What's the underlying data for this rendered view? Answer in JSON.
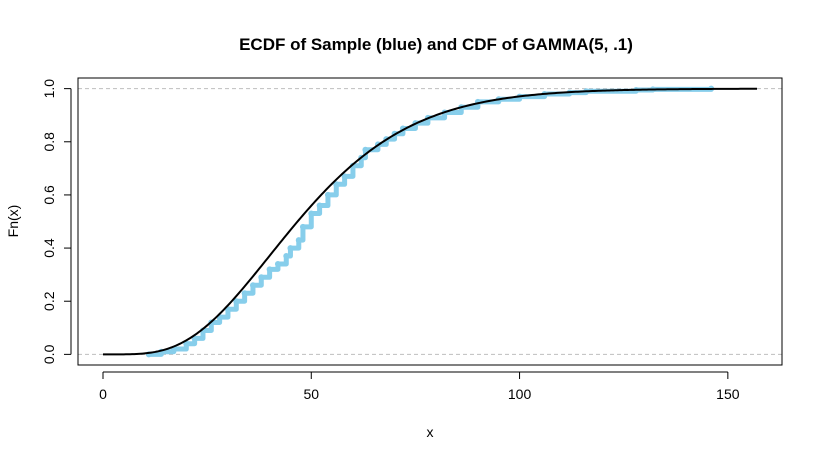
{
  "chart_data": {
    "type": "line",
    "title": "ECDF of Sample (blue) and CDF of GAMMA(5, .1)",
    "xlabel": "x",
    "ylabel": "Fn(x)",
    "xlim": [
      -6,
      163
    ],
    "ylim": [
      -0.04,
      1.04
    ],
    "x_ticks": [
      0,
      50,
      100,
      150
    ],
    "y_ticks": [
      0.0,
      0.2,
      0.4,
      0.6,
      0.8,
      1.0
    ],
    "x_tick_labels": [
      "0",
      "50",
      "100",
      "150"
    ],
    "y_tick_labels": [
      "0.0",
      "0.2",
      "0.4",
      "0.6",
      "0.8",
      "1.0"
    ],
    "reference_lines": [
      0,
      1
    ],
    "colors": {
      "ecdf": "#87ceeb",
      "cdf": "#000000",
      "reference": "#bebebe"
    },
    "series": [
      {
        "kind": "ecdf",
        "points": [
          [
            11,
            0.0
          ],
          [
            14,
            0.01
          ],
          [
            17,
            0.02
          ],
          [
            20,
            0.04
          ],
          [
            22,
            0.06
          ],
          [
            24,
            0.09
          ],
          [
            26,
            0.12
          ],
          [
            28,
            0.14
          ],
          [
            30,
            0.17
          ],
          [
            32,
            0.2
          ],
          [
            34,
            0.23
          ],
          [
            36,
            0.26
          ],
          [
            38,
            0.29
          ],
          [
            40,
            0.32
          ],
          [
            42,
            0.34
          ],
          [
            44,
            0.37
          ],
          [
            45,
            0.4
          ],
          [
            47,
            0.43
          ],
          [
            48,
            0.48
          ],
          [
            50,
            0.53
          ],
          [
            52,
            0.56
          ],
          [
            54,
            0.6
          ],
          [
            56,
            0.64
          ],
          [
            58,
            0.67
          ],
          [
            60,
            0.71
          ],
          [
            62,
            0.74
          ],
          [
            63,
            0.77
          ],
          [
            66,
            0.79
          ],
          [
            68,
            0.81
          ],
          [
            70,
            0.83
          ],
          [
            72,
            0.85
          ],
          [
            75,
            0.87
          ],
          [
            78,
            0.89
          ],
          [
            82,
            0.91
          ],
          [
            86,
            0.93
          ],
          [
            90,
            0.95
          ],
          [
            95,
            0.96
          ],
          [
            100,
            0.97
          ],
          [
            106,
            0.98
          ],
          [
            112,
            0.985
          ],
          [
            116,
            0.99
          ],
          [
            128,
            0.995
          ],
          [
            132,
            0.997
          ],
          [
            146,
            1.0
          ]
        ]
      },
      {
        "kind": "cdf",
        "shape": 5,
        "rate": 0.1,
        "x_range": [
          0,
          157
        ]
      }
    ]
  }
}
